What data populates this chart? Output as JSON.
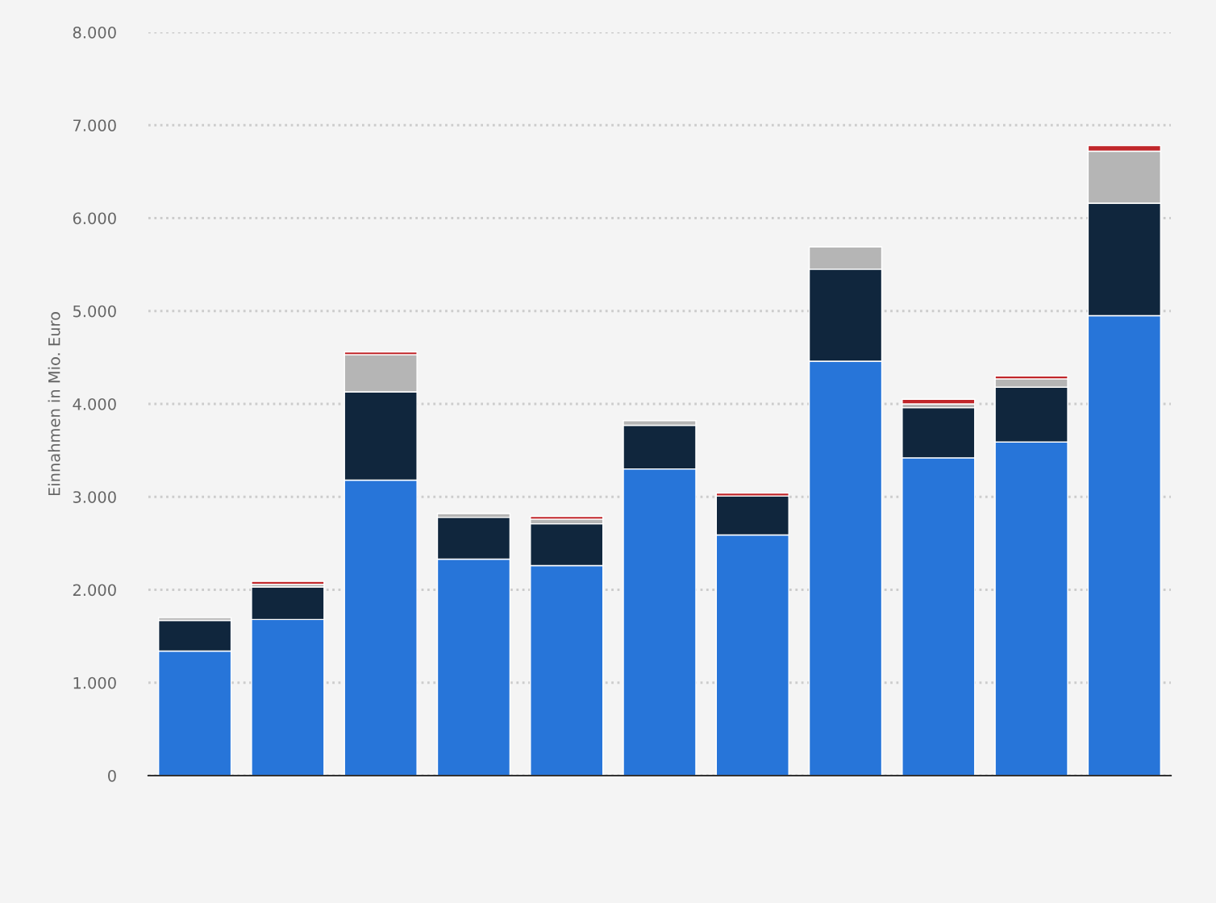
{
  "chart_data": {
    "type": "bar",
    "stacked": true,
    "ylabel": "Einnahmen in Mio. Euro",
    "categories": [
      null,
      null,
      null,
      null,
      null,
      null,
      null,
      null,
      null,
      null,
      null
    ],
    "series": [
      {
        "color": "#2775d9",
        "values": [
          1340,
          1680,
          3180,
          2330,
          2260,
          3300,
          2590,
          4460,
          3420,
          3590,
          4950
        ]
      },
      {
        "color": "#10263d",
        "values": [
          330,
          350,
          950,
          450,
          450,
          470,
          420,
          990,
          540,
          590,
          1210
        ]
      },
      {
        "color": "#b5b5b5",
        "values": [
          30,
          30,
          400,
          40,
          50,
          50,
          null,
          240,
          40,
          90,
          560
        ]
      },
      {
        "color": "#c0262a",
        "values": [
          null,
          30,
          30,
          null,
          30,
          null,
          30,
          null,
          50,
          30,
          60
        ]
      }
    ],
    "ylim": [
      0,
      8000
    ],
    "yticks": [
      0,
      {
        "value": 1000,
        "label": "1.000"
      },
      {
        "value": 2000,
        "label": "2.000"
      },
      {
        "value": 3000,
        "label": "3.000"
      },
      {
        "value": 4000,
        "label": "4.000"
      },
      {
        "value": 5000,
        "label": "5.000"
      },
      {
        "value": 6000,
        "label": "6.000"
      },
      {
        "value": 7000,
        "label": "7.000"
      },
      {
        "value": 8000,
        "label": "8.000"
      }
    ],
    "grid": "y",
    "tick_labels": "y"
  }
}
